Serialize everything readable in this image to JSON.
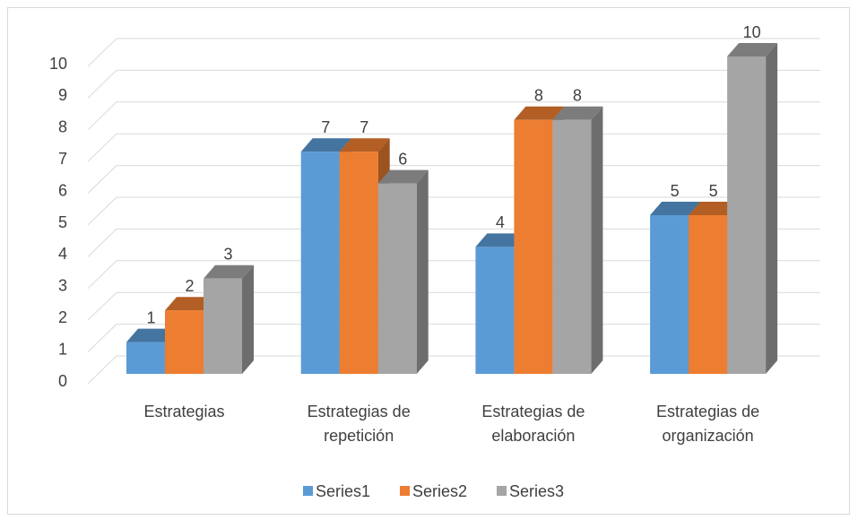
{
  "chart_data": {
    "type": "bar3d",
    "categories": [
      "Estrategias",
      "Estrategias de repetición",
      "Estrategias de elaboración",
      "Estrategias de organización"
    ],
    "series": [
      {
        "name": "Series1",
        "color": "#5b9bd5",
        "values": [
          1,
          7,
          4,
          5
        ]
      },
      {
        "name": "Series2",
        "color": "#ed7d31",
        "values": [
          2,
          7,
          8,
          5
        ]
      },
      {
        "name": "Series3",
        "color": "#a5a5a5",
        "values": [
          3,
          6,
          8,
          10
        ]
      }
    ],
    "ylim": [
      0,
      10
    ],
    "yticks": [
      0,
      1,
      2,
      3,
      4,
      5,
      6,
      7,
      8,
      9,
      10
    ],
    "grid": true,
    "legend": "bottom"
  }
}
